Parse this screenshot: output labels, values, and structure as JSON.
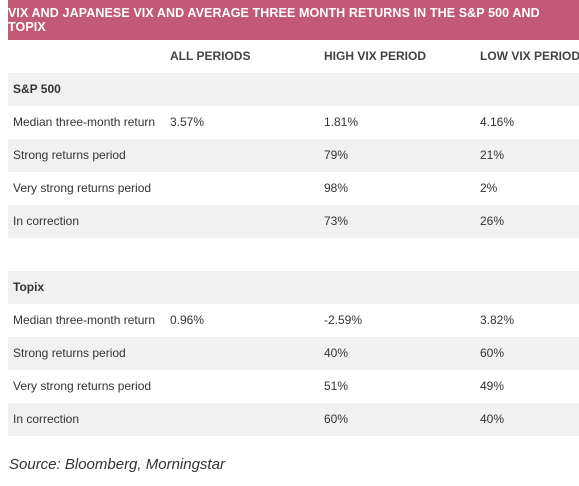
{
  "title": "VIX AND JAPANESE VIX AND AVERAGE THREE MONTH RETURNS IN THE S&P 500 AND TOPIX",
  "columns": [
    "",
    "ALL PERIODS",
    "HIGH VIX PERIOD",
    "LOW VIX PERIOD"
  ],
  "sections": [
    {
      "name": "S&P 500",
      "rows": [
        [
          "Median three-month return",
          "3.57%",
          "1.81%",
          "4.16%"
        ],
        [
          "Strong returns period",
          "",
          "79%",
          "21%"
        ],
        [
          "Very strong returns period",
          "",
          "98%",
          "2%"
        ],
        [
          "In correction",
          "",
          "73%",
          "26%"
        ]
      ]
    },
    {
      "name": "Topix",
      "rows": [
        [
          "Median three-month return",
          "0.96%",
          "-2.59%",
          "3.82%"
        ],
        [
          "Strong returns period",
          "",
          "40%",
          "60%"
        ],
        [
          "Very strong returns period",
          "",
          "51%",
          "49%"
        ],
        [
          "In correction",
          "",
          "60%",
          "40%"
        ]
      ]
    }
  ],
  "source": "Source: Bloomberg, Morningstar"
}
